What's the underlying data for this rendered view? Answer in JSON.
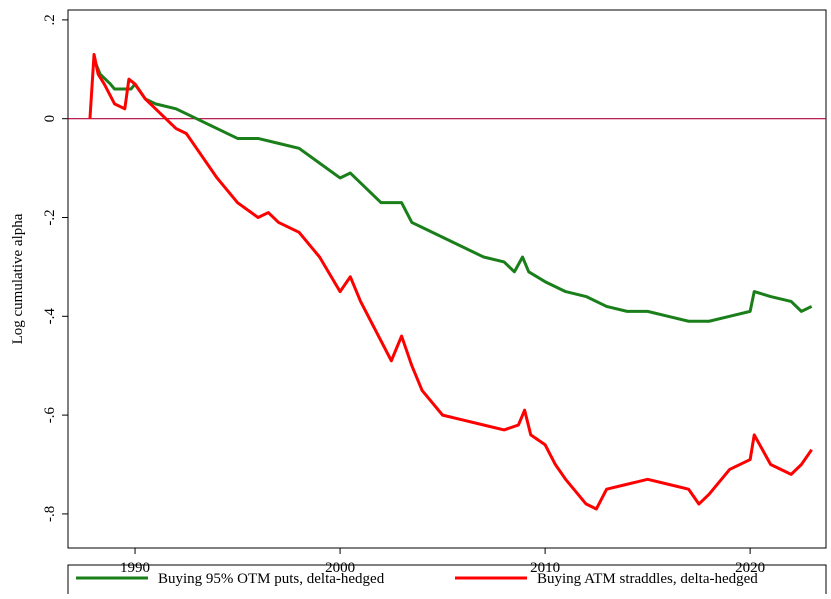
{
  "chart_data": {
    "type": "line",
    "y_label": "Log cumulative alpha",
    "xlim": [
      1986.73,
      2023.7
    ],
    "xticks": [
      1990,
      2000,
      2010,
      2020
    ],
    "ylim": [
      -0.869,
      0.22
    ],
    "yticks": [
      {
        "value": 0.2,
        "label": ".2"
      },
      0,
      {
        "value": -0.2,
        "label": "-.2"
      },
      {
        "value": -0.4,
        "label": "-.4"
      },
      {
        "value": -0.6,
        "label": "-.6"
      },
      {
        "value": -0.8,
        "label": "-.8"
      }
    ],
    "yline": 0,
    "yline_color": "#b0003a",
    "legend": "bottom",
    "series": [
      {
        "name": "Buying 95% OTM puts, delta-hedged",
        "color": "#1a7f1a",
        "x": [
          1988.0,
          1988.3,
          1988.8,
          1989.0,
          1989.8,
          1990.0,
          1990.5,
          1991,
          1992,
          1993,
          1994,
          1995,
          1996,
          1997,
          1998,
          1999,
          2000,
          2000.5,
          2001,
          2002,
          2003,
          2003.5,
          2004,
          2005,
          2006,
          2007,
          2008,
          2008.5,
          2008.9,
          2009.2,
          2010,
          2011,
          2012,
          2013,
          2014,
          2015,
          2016,
          2017,
          2018,
          2019,
          2020,
          2020.2,
          2021,
          2022,
          2022.5,
          2023
        ],
        "values": [
          0.12,
          0.09,
          0.07,
          0.06,
          0.06,
          0.07,
          0.04,
          0.03,
          0.02,
          0.0,
          -0.02,
          -0.04,
          -0.04,
          -0.05,
          -0.06,
          -0.09,
          -0.12,
          -0.11,
          -0.13,
          -0.17,
          -0.17,
          -0.21,
          -0.22,
          -0.24,
          -0.26,
          -0.28,
          -0.29,
          -0.31,
          -0.28,
          -0.31,
          -0.33,
          -0.35,
          -0.36,
          -0.38,
          -0.39,
          -0.39,
          -0.4,
          -0.41,
          -0.41,
          -0.4,
          -0.39,
          -0.35,
          -0.36,
          -0.37,
          -0.39,
          -0.38
        ]
      },
      {
        "name": "Buying ATM straddles, delta-hedged",
        "color": "#ff0000",
        "x": [
          1987.8,
          1988.0,
          1988.2,
          1988.5,
          1989,
          1989.5,
          1989.7,
          1990,
          1990.5,
          1991,
          1991.5,
          1992,
          1992.5,
          1993,
          1994,
          1995,
          1996,
          1996.5,
          1997,
          1998,
          1999,
          2000,
          2000.5,
          2001,
          2002,
          2002.5,
          2003,
          2003.5,
          2004,
          2005,
          2006,
          2007,
          2008,
          2008.7,
          2009,
          2009.3,
          2010,
          2010.5,
          2011,
          2012,
          2012.5,
          2013,
          2014,
          2015,
          2016,
          2017,
          2017.5,
          2018,
          2019,
          2020,
          2020.2,
          2021,
          2022,
          2022.5,
          2023
        ],
        "values": [
          0.0,
          0.13,
          0.09,
          0.07,
          0.03,
          0.02,
          0.08,
          0.07,
          0.04,
          0.02,
          0.0,
          -0.02,
          -0.03,
          -0.06,
          -0.12,
          -0.17,
          -0.2,
          -0.19,
          -0.21,
          -0.23,
          -0.28,
          -0.35,
          -0.32,
          -0.37,
          -0.45,
          -0.49,
          -0.44,
          -0.5,
          -0.55,
          -0.6,
          -0.61,
          -0.62,
          -0.63,
          -0.62,
          -0.59,
          -0.64,
          -0.66,
          -0.7,
          -0.73,
          -0.78,
          -0.79,
          -0.75,
          -0.74,
          -0.73,
          -0.74,
          -0.75,
          -0.78,
          -0.76,
          -0.71,
          -0.69,
          -0.64,
          -0.7,
          -0.72,
          -0.7,
          -0.67
        ]
      }
    ]
  }
}
